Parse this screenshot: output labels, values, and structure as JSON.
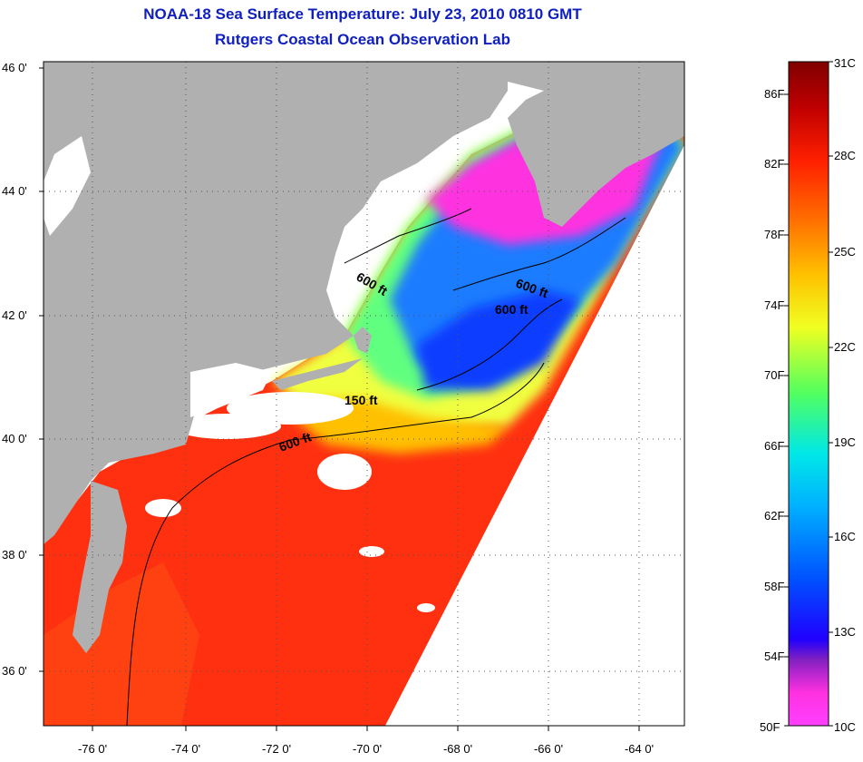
{
  "title": {
    "line1": "NOAA-18 Sea Surface Temperature:  July 23, 2010 0810 GMT",
    "line2": "Rutgers Coastal Ocean Observation Lab"
  },
  "map": {
    "lat_labels": [
      "46 0'",
      "44 0'",
      "42 0'",
      "40 0'",
      "38 0'",
      "36 0'"
    ],
    "lon_labels": [
      "-76 0'",
      "-74 0'",
      "-72 0'",
      "-70 0'",
      "-68 0'",
      "-66 0'",
      "-64 0'"
    ],
    "lat_range": [
      35,
      46
    ],
    "lon_range": [
      -77,
      -63
    ],
    "contour_labels": [
      "600 ft",
      "600 ft",
      "600 ft",
      "150 ft",
      "600 ft"
    ],
    "colors": {
      "land": "#b0b0b0",
      "cloud": "#ffffff",
      "grid": "#555555"
    }
  },
  "colorbar": {
    "fahrenheit": [
      "86F",
      "82F",
      "78F",
      "74F",
      "70F",
      "66F",
      "62F",
      "58F",
      "54F",
      "50F"
    ],
    "celsius": [
      "31C",
      "28C",
      "25C",
      "22C",
      "19C",
      "16C",
      "13C",
      "10C"
    ],
    "range_f": [
      50,
      88.5
    ],
    "colors_low_to_high": [
      "#ff40ff",
      "#ff30e0",
      "#8020c0",
      "#0000ff",
      "#0090ff",
      "#00e8e8",
      "#50ff60",
      "#f0ff20",
      "#ffc000",
      "#ff7000",
      "#ff2000",
      "#c00000",
      "#800000"
    ]
  }
}
